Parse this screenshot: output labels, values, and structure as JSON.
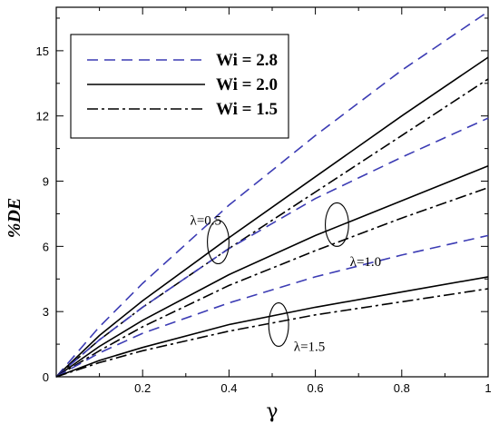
{
  "chart_data": {
    "type": "line",
    "xlabel": "γ",
    "ylabel": "%DE",
    "xlim": [
      0,
      1
    ],
    "ylim": [
      0,
      17
    ],
    "xticks": [
      {
        "value": 0.2,
        "label": "0.2"
      },
      {
        "value": 0.4,
        "label": "0.4"
      },
      {
        "value": 0.6,
        "label": "0.6"
      },
      {
        "value": 0.8,
        "label": "0.8"
      },
      {
        "value": 1.0,
        "label": "1"
      }
    ],
    "yticks": [
      {
        "value": 0,
        "label": "0"
      },
      {
        "value": 3,
        "label": "3"
      },
      {
        "value": 6,
        "label": "6"
      },
      {
        "value": 9,
        "label": "9"
      },
      {
        "value": 12,
        "label": "12"
      },
      {
        "value": 15,
        "label": "15"
      }
    ],
    "legend": {
      "placement": "top-left",
      "entries": [
        {
          "label": "Wi = 2.8",
          "style": "dashed",
          "color": "#3c3cb4"
        },
        {
          "label": "Wi = 2.0",
          "style": "solid",
          "color": "#000000"
        },
        {
          "label": "Wi = 1.5",
          "style": "dashdot",
          "color": "#000000"
        }
      ]
    },
    "series": [
      {
        "group": "λ=0.5",
        "style": "dashed",
        "x": [
          0,
          0.1,
          0.2,
          0.4,
          0.6,
          0.8,
          1.0
        ],
        "y": [
          0,
          2.3,
          4.3,
          7.9,
          11.1,
          14.1,
          16.8
        ]
      },
      {
        "group": "λ=0.5",
        "style": "solid",
        "x": [
          0,
          0.1,
          0.2,
          0.4,
          0.6,
          0.8,
          1.0
        ],
        "y": [
          0,
          1.9,
          3.5,
          6.4,
          9.2,
          12.0,
          14.7
        ]
      },
      {
        "group": "λ=0.5",
        "style": "dashdot",
        "x": [
          0,
          0.1,
          0.2,
          0.4,
          0.6,
          0.8,
          1.0
        ],
        "y": [
          0,
          1.7,
          3.2,
          5.9,
          8.5,
          11.1,
          13.7
        ]
      },
      {
        "group": "λ=1.0",
        "style": "dashed",
        "x": [
          0,
          0.1,
          0.2,
          0.4,
          0.6,
          0.8,
          1.0
        ],
        "y": [
          0,
          1.7,
          3.2,
          5.9,
          8.2,
          10.1,
          11.9
        ]
      },
      {
        "group": "λ=1.0",
        "style": "solid",
        "x": [
          0,
          0.1,
          0.2,
          0.4,
          0.6,
          0.8,
          1.0
        ],
        "y": [
          0,
          1.4,
          2.6,
          4.7,
          6.5,
          8.1,
          9.7
        ]
      },
      {
        "group": "λ=1.0",
        "style": "dashdot",
        "x": [
          0,
          0.1,
          0.2,
          0.4,
          0.6,
          0.8,
          1.0
        ],
        "y": [
          0,
          1.2,
          2.3,
          4.2,
          5.8,
          7.3,
          8.7
        ]
      },
      {
        "group": "λ=1.5",
        "style": "dashed",
        "x": [
          0,
          0.1,
          0.2,
          0.4,
          0.6,
          0.8,
          1.0
        ],
        "y": [
          0,
          1.1,
          2.0,
          3.4,
          4.6,
          5.6,
          6.5
        ]
      },
      {
        "group": "λ=1.5",
        "style": "solid",
        "x": [
          0,
          0.1,
          0.2,
          0.4,
          0.6,
          0.8,
          1.0
        ],
        "y": [
          0,
          0.75,
          1.35,
          2.4,
          3.2,
          3.9,
          4.6
        ]
      },
      {
        "group": "λ=1.5",
        "style": "dashdot",
        "x": [
          0,
          0.1,
          0.2,
          0.4,
          0.6,
          0.8,
          1.0
        ],
        "y": [
          0,
          0.65,
          1.2,
          2.1,
          2.85,
          3.45,
          4.05
        ]
      }
    ],
    "annotations": [
      {
        "text": "λ=0.5",
        "x": 0.31,
        "y": 7.2,
        "ellipse": {
          "cx": 0.375,
          "cy": 6.2,
          "rx": 0.025,
          "ry": 1.0
        }
      },
      {
        "text": "λ=1.0",
        "x": 0.68,
        "y": 5.3,
        "ellipse": {
          "cx": 0.65,
          "cy": 7.0,
          "rx": 0.027,
          "ry": 1.0
        }
      },
      {
        "text": "λ=1.5",
        "x": 0.55,
        "y": 1.4,
        "ellipse": {
          "cx": 0.515,
          "cy": 2.4,
          "rx": 0.023,
          "ry": 1.0
        }
      }
    ],
    "grid": false
  }
}
